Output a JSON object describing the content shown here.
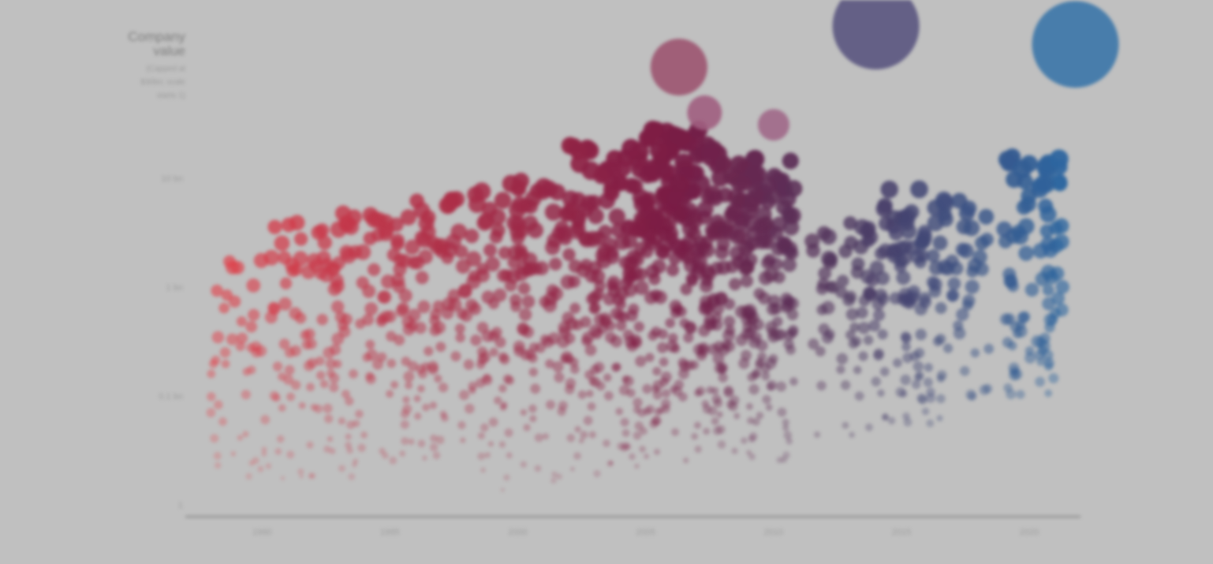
{
  "chart_data": {
    "type": "scatter",
    "title": "",
    "xlabel": "",
    "ylabel_lines": [
      "Company",
      "value"
    ],
    "ylabel_sub_lines": [
      "(Capped at",
      "$30bn; scale",
      "starts 1)"
    ],
    "y_scale": "log",
    "xlim": [
      1990,
      2025
    ],
    "ylim": [
      0.01,
      100
    ],
    "x_ticks": [
      "1990",
      "1995",
      "2000",
      "2005",
      "2010",
      "2015",
      "2020"
    ],
    "x_tick_values": [
      1993,
      1998,
      2003,
      2008,
      2013,
      2018,
      2023
    ],
    "y_ticks": [
      "1",
      "0.1 bn",
      "1 bn",
      "10 bn"
    ],
    "y_tick_values": [
      0.01,
      0.1,
      1,
      10
    ],
    "grid": false,
    "legend": "none",
    "color_start": "#e8454c",
    "color_mid": "#7a1c45",
    "color_mid2": "#4d3860",
    "color_end": "#2a6aa5",
    "highlight_points": [
      {
        "x": 2009.3,
        "y": 105,
        "size": 36,
        "color": "#9c5470"
      },
      {
        "x": 2017.0,
        "y": 250,
        "size": 55,
        "color": "#5a5580"
      },
      {
        "x": 2024.8,
        "y": 170,
        "size": 55,
        "color": "#3b75a8"
      },
      {
        "x": 2010.3,
        "y": 40,
        "size": 22,
        "color": "#a05e80"
      },
      {
        "x": 2013.0,
        "y": 31,
        "size": 20,
        "color": "#a06888"
      }
    ],
    "clusters": [
      {
        "x_start": 1991.0,
        "x_end": 1993.2,
        "count": 45,
        "logy_min": -1.8,
        "logy_max": 0.25
      },
      {
        "x_start": 1993.2,
        "x_end": 1996.0,
        "count": 85,
        "logy_min": -1.8,
        "logy_max": 0.6
      },
      {
        "x_start": 1996.0,
        "x_end": 1999.0,
        "count": 95,
        "logy_min": -1.9,
        "logy_max": 0.7
      },
      {
        "x_start": 1999.0,
        "x_end": 2002.0,
        "count": 105,
        "logy_min": -1.8,
        "logy_max": 0.9
      },
      {
        "x_start": 2002.0,
        "x_end": 2005.0,
        "count": 120,
        "logy_min": -1.9,
        "logy_max": 1.0
      },
      {
        "x_start": 2005.0,
        "x_end": 2008.0,
        "count": 180,
        "logy_min": -1.8,
        "logy_max": 1.3
      },
      {
        "x_start": 2008.0,
        "x_end": 2011.0,
        "count": 230,
        "logy_min": -1.6,
        "logy_max": 1.45
      },
      {
        "x_start": 2011.0,
        "x_end": 2013.8,
        "count": 190,
        "logy_min": -1.6,
        "logy_max": 1.2
      },
      {
        "x_start": 2014.5,
        "x_end": 2016.5,
        "count": 45,
        "logy_min": -1.4,
        "logy_max": 0.6
      },
      {
        "x_start": 2016.5,
        "x_end": 2019.5,
        "count": 110,
        "logy_min": -1.3,
        "logy_max": 0.9
      },
      {
        "x_start": 2019.5,
        "x_end": 2021.5,
        "count": 45,
        "logy_min": -1.2,
        "logy_max": 0.8
      },
      {
        "x_start": 2022.0,
        "x_end": 2024.3,
        "count": 90,
        "logy_min": -1.1,
        "logy_max": 1.2
      }
    ],
    "seed": 17
  }
}
